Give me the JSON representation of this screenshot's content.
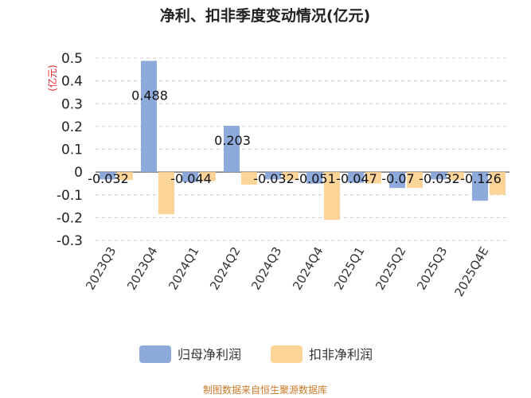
{
  "chart_data": {
    "type": "bar",
    "title": "净利、扣非季度变动情况(亿元)",
    "ylabel": "(亿元)",
    "xlabel": "",
    "ylim": [
      -0.3,
      0.5
    ],
    "yticks": [
      0.5,
      0.4,
      0.3,
      0.2,
      0.1,
      0,
      -0.1,
      -0.2,
      -0.3
    ],
    "ytick_labels": [
      "0.5",
      "0.4",
      "0.3",
      "0.2",
      "0.1",
      "0",
      "-0.1",
      "-0.2",
      "-0.3"
    ],
    "grid": true,
    "legend_position": "bottom",
    "categories": [
      "2023Q3",
      "2023Q4",
      "2024Q1",
      "2024Q2",
      "2024Q3",
      "2024Q4",
      "2025Q1",
      "2025Q2",
      "2025Q3",
      "2025Q4E"
    ],
    "series": [
      {
        "name": "归母净利润",
        "color": "#8eaadb",
        "values": [
          -0.032,
          0.488,
          -0.044,
          0.203,
          -0.032,
          -0.051,
          -0.047,
          -0.07,
          -0.032,
          -0.126
        ],
        "labels": [
          "-0.032",
          "0.488",
          "-0.044",
          "0.203",
          "-0.032",
          "-0.051",
          "-0.047",
          "-0.07",
          "-0.032",
          "-0.126"
        ]
      },
      {
        "name": "扣非净利润",
        "color": "#fdd497",
        "values": [
          -0.035,
          -0.185,
          -0.04,
          -0.055,
          -0.035,
          -0.21,
          -0.05,
          -0.07,
          -0.035,
          -0.1
        ]
      }
    ],
    "source": "制图数据来自恒生聚源数据库",
    "source_color": "#cc7a2a",
    "ylabel_color": "#e8202a",
    "grid_color": "#cccccc"
  }
}
